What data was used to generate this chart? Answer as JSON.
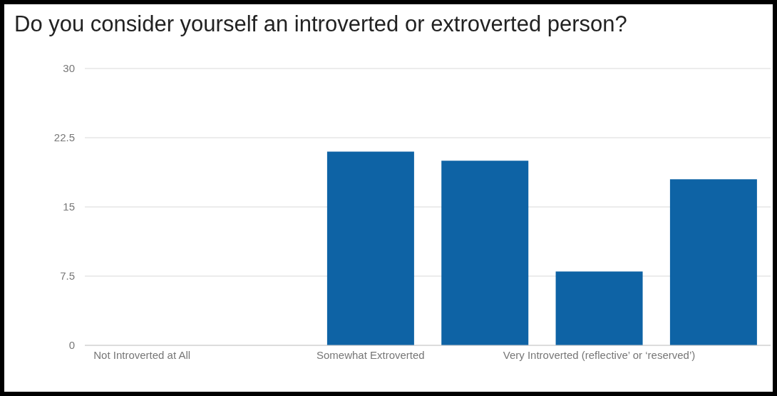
{
  "chart_data": {
    "type": "bar",
    "title": "Do you consider yourself an introverted or extroverted person?",
    "categories": [
      "Not Introverted at All",
      null,
      "Somewhat Extroverted",
      null,
      "Very Introverted (reflective’ or ‘reserved’)",
      null
    ],
    "values": [
      0,
      0,
      21,
      20,
      8,
      18
    ],
    "color": "#0e63a5",
    "ylim": [
      0,
      30
    ],
    "yticks": [
      0,
      7.5,
      15,
      22.5,
      30
    ],
    "grid": "y"
  }
}
